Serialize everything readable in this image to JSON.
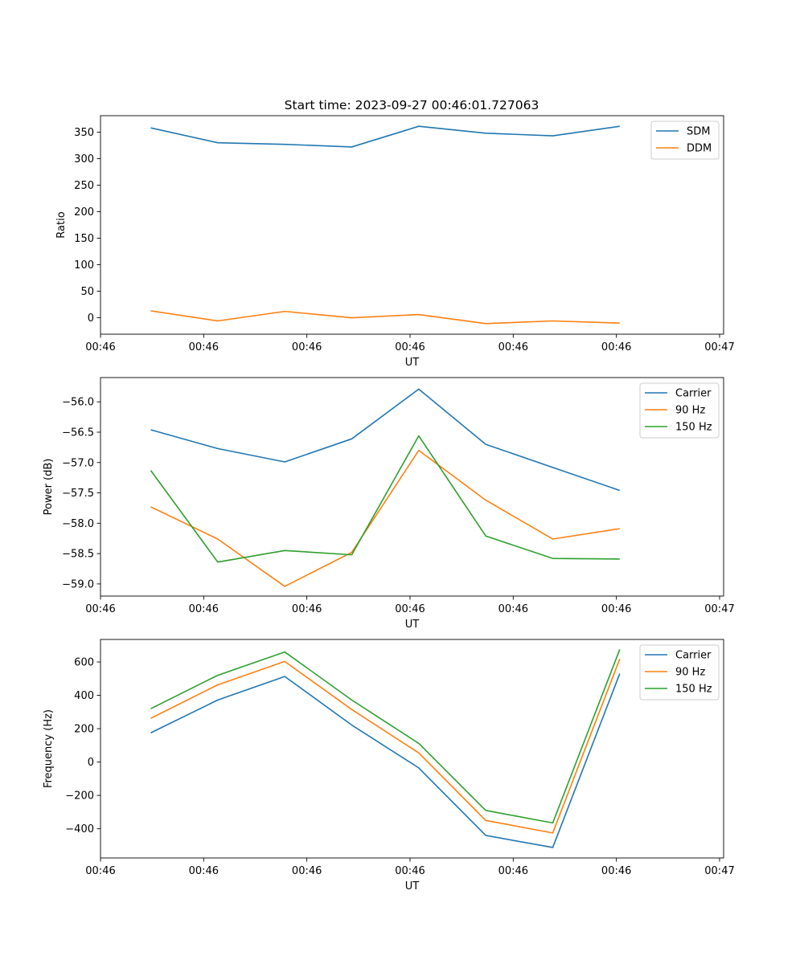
{
  "figure": {
    "title": "Start time: 2023-09-27 00:46:01.727063",
    "background": "#ffffff"
  },
  "colors": {
    "blue": "#1f77b4",
    "orange": "#ff7f0e",
    "green": "#2ca02c"
  },
  "chart_data": [
    {
      "type": "line",
      "title": "Start time: 2023-09-27 00:46:01.727063",
      "xlabel": "UT",
      "ylabel": "Ratio",
      "x_index": [
        0,
        1,
        2,
        3,
        4,
        5,
        6,
        7
      ],
      "xlim": [
        -0.75,
        8.55
      ],
      "ylim": [
        -31,
        381
      ],
      "x_ticks": [
        -0.75,
        0.79,
        2.33,
        3.87,
        5.41,
        6.95,
        8.49
      ],
      "x_tick_labels": [
        "00:46",
        "00:46",
        "00:46",
        "00:46",
        "00:46",
        "00:46",
        "00:47"
      ],
      "y_ticks": [
        0,
        50,
        100,
        150,
        200,
        250,
        300,
        350
      ],
      "y_tick_labels": [
        "0",
        "50",
        "100",
        "150",
        "200",
        "250",
        "300",
        "350"
      ],
      "legend_position": "top-right",
      "series": [
        {
          "name": "SDM",
          "color": "#1f77b4",
          "values": [
            358,
            330,
            327,
            322,
            361,
            348,
            343,
            361
          ]
        },
        {
          "name": "DDM",
          "color": "#ff7f0e",
          "values": [
            13,
            -6,
            12,
            0,
            6,
            -11,
            -6,
            -10
          ]
        }
      ]
    },
    {
      "type": "line",
      "xlabel": "UT",
      "ylabel": "Power (dB)",
      "x_index": [
        0,
        1,
        2,
        3,
        4,
        5,
        6,
        7
      ],
      "xlim": [
        -0.75,
        8.55
      ],
      "ylim": [
        -59.2,
        -55.6
      ],
      "x_ticks": [
        -0.75,
        0.79,
        2.33,
        3.87,
        5.41,
        6.95,
        8.49
      ],
      "x_tick_labels": [
        "00:46",
        "00:46",
        "00:46",
        "00:46",
        "00:46",
        "00:46",
        "00:47"
      ],
      "y_ticks": [
        -59.0,
        -58.5,
        -58.0,
        -57.5,
        -57.0,
        -56.5,
        -56.0
      ],
      "y_tick_labels": [
        "−59.0",
        "−58.5",
        "−58.0",
        "−57.5",
        "−57.0",
        "−56.5",
        "−56.0"
      ],
      "legend_position": "top-right",
      "series": [
        {
          "name": "Carrier",
          "color": "#1f77b4",
          "values": [
            -56.46,
            -56.77,
            -56.99,
            -56.61,
            -55.79,
            -56.7,
            -57.08,
            -57.46
          ]
        },
        {
          "name": "90 Hz",
          "color": "#ff7f0e",
          "values": [
            -57.73,
            -58.26,
            -59.04,
            -58.48,
            -56.8,
            -57.62,
            -58.26,
            -58.09
          ]
        },
        {
          "name": "150 Hz",
          "color": "#2ca02c",
          "values": [
            -57.13,
            -58.64,
            -58.45,
            -58.52,
            -56.56,
            -58.21,
            -58.58,
            -58.59
          ]
        }
      ]
    },
    {
      "type": "line",
      "xlabel": "UT",
      "ylabel": "Frequency (Hz)",
      "x_index": [
        0,
        1,
        2,
        3,
        4,
        5,
        6,
        7
      ],
      "xlim": [
        -0.75,
        8.55
      ],
      "ylim": [
        -575,
        735
      ],
      "x_ticks": [
        -0.75,
        0.79,
        2.33,
        3.87,
        5.41,
        6.95,
        8.49
      ],
      "x_tick_labels": [
        "00:46",
        "00:46",
        "00:46",
        "00:46",
        "00:46",
        "00:46",
        "00:47"
      ],
      "y_ticks": [
        -400,
        -200,
        0,
        200,
        400,
        600
      ],
      "y_tick_labels": [
        "−400",
        "−200",
        "0",
        "200",
        "400",
        "600"
      ],
      "legend_position": "top-right",
      "series": [
        {
          "name": "Carrier",
          "color": "#1f77b4",
          "values": [
            175,
            372,
            513,
            222,
            -35,
            -440,
            -512,
            530
          ]
        },
        {
          "name": "90 Hz",
          "color": "#ff7f0e",
          "values": [
            262,
            463,
            603,
            315,
            55,
            -350,
            -425,
            618
          ]
        },
        {
          "name": "150 Hz",
          "color": "#2ca02c",
          "values": [
            320,
            520,
            660,
            372,
            112,
            -290,
            -365,
            675
          ]
        }
      ]
    }
  ]
}
